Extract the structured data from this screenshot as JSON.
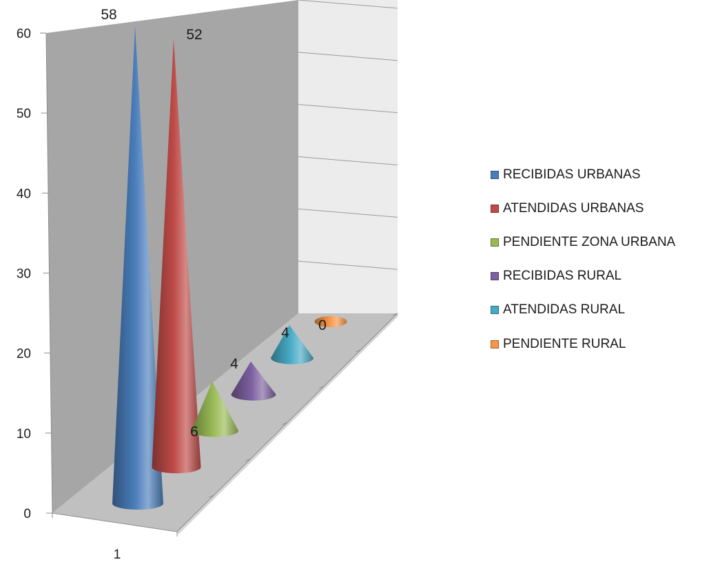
{
  "chart_data": {
    "type": "bar",
    "style": "3d-cone",
    "categories": [
      "1"
    ],
    "series": [
      {
        "name": "RECIBIDAS URBANAS",
        "values": [
          58
        ],
        "color": "#4a7ebb"
      },
      {
        "name": "ATENDIDAS URBANAS",
        "values": [
          52
        ],
        "color": "#be4b48"
      },
      {
        "name": "PENDIENTE ZONA URBANA",
        "values": [
          6
        ],
        "color": "#98b954"
      },
      {
        "name": "RECIBIDAS RURAL",
        "values": [
          4
        ],
        "color": "#7d60a0"
      },
      {
        "name": "ATENDIDAS RURAL",
        "values": [
          4
        ],
        "color": "#46aac4"
      },
      {
        "name": "PENDIENTE RURAL",
        "values": [
          0
        ],
        "color": "#f79646"
      }
    ],
    "data_labels": [
      "58",
      "52",
      "6",
      "4",
      "4",
      "0"
    ],
    "y_ticks": [
      "0",
      "10",
      "20",
      "30",
      "40",
      "50",
      "60"
    ],
    "ylim": [
      0,
      60
    ],
    "grid": true,
    "legend_position": "right",
    "title": "",
    "xlabel": "",
    "ylabel": ""
  }
}
